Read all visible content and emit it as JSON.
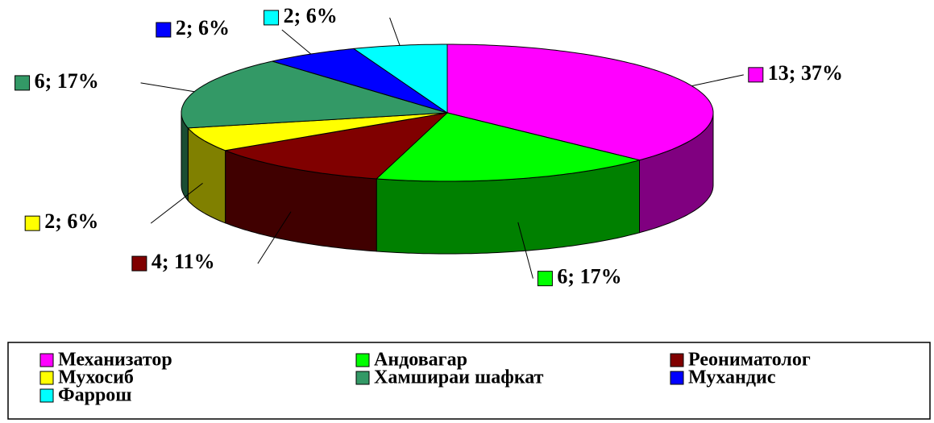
{
  "chart_data": {
    "type": "pie",
    "categories": [
      "Механизатор",
      "Андовагар",
      "Реониматолог",
      "Мухосиб",
      "Хамшираи шафкат",
      "Мухандис",
      "Фаррош"
    ],
    "values": [
      13,
      6,
      4,
      2,
      6,
      2,
      2
    ],
    "value_labels": [
      "13; 37%",
      "6; 17%",
      "4; 11%",
      "2; 6%",
      "6; 17%",
      "2; 6%",
      "2; 6%"
    ],
    "colors": [
      "#ff00ff",
      "#00ff00",
      "#800000",
      "#ffff00",
      "#339966",
      "#0000ff",
      "#00ffff"
    ],
    "legend": "bottom"
  }
}
